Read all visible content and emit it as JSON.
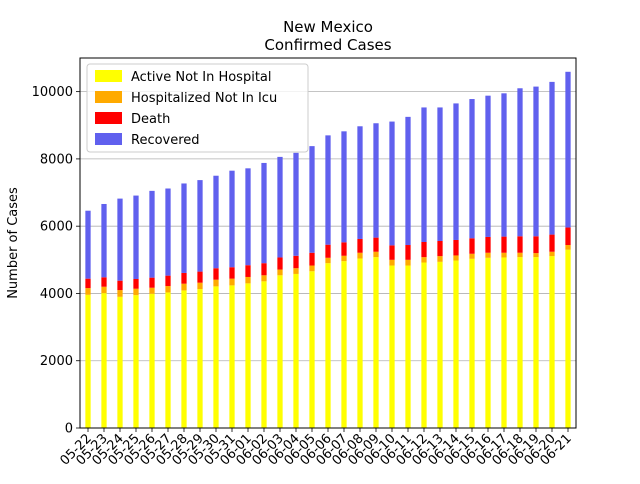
{
  "chart_data": {
    "type": "bar",
    "stacked": true,
    "title": "New Mexico",
    "subtitle": "Confirmed Cases",
    "xlabel": "",
    "ylabel": "Number of Cases",
    "ylim": [
      0,
      11000
    ],
    "yticks": [
      0,
      2000,
      4000,
      6000,
      8000,
      10000
    ],
    "grid": "y",
    "legend_position": "top-left",
    "categories": [
      "05-22",
      "05-23",
      "05-24",
      "05-25",
      "05-26",
      "05-27",
      "05-28",
      "05-29",
      "05-30",
      "05-31",
      "06-01",
      "06-02",
      "06-03",
      "06-04",
      "06-05",
      "06-06",
      "06-07",
      "06-08",
      "06-09",
      "06-10",
      "06-11",
      "06-12",
      "06-13",
      "06-14",
      "06-15",
      "06-16",
      "06-17",
      "06-18",
      "06-19",
      "06-20",
      "06-21"
    ],
    "series": [
      {
        "name": "Active Not In Hospital",
        "color": "#ffff00",
        "values": [
          3960,
          4010,
          3900,
          3950,
          3990,
          4030,
          4090,
          4130,
          4210,
          4240,
          4300,
          4360,
          4540,
          4580,
          4660,
          4900,
          4960,
          5040,
          5080,
          4830,
          4830,
          4920,
          4940,
          4980,
          5030,
          5060,
          5070,
          5080,
          5080,
          5110,
          5300
        ]
      },
      {
        "name": "Hospitalized Not In Icu",
        "color": "#ffaa00",
        "values": [
          200,
          190,
          200,
          190,
          180,
          190,
          200,
          190,
          200,
          200,
          190,
          180,
          170,
          170,
          170,
          160,
          160,
          170,
          160,
          170,
          170,
          160,
          170,
          150,
          150,
          150,
          140,
          130,
          120,
          130,
          140
        ]
      },
      {
        "name": "Death",
        "color": "#ff0000",
        "values": [
          280,
          280,
          280,
          290,
          300,
          310,
          320,
          330,
          340,
          340,
          350,
          360,
          360,
          370,
          380,
          390,
          400,
          410,
          420,
          430,
          440,
          450,
          450,
          460,
          460,
          470,
          480,
          490,
          500,
          510,
          520
        ]
      },
      {
        "name": "Recovered",
        "color": "#6060ee",
        "values": [
          2020,
          2180,
          2440,
          2480,
          2580,
          2590,
          2660,
          2720,
          2750,
          2870,
          2880,
          2980,
          2990,
          3060,
          3170,
          3250,
          3300,
          3350,
          3400,
          3680,
          3810,
          4000,
          3970,
          4060,
          4140,
          4200,
          4260,
          4400,
          4450,
          4540,
          4630
        ]
      }
    ]
  }
}
